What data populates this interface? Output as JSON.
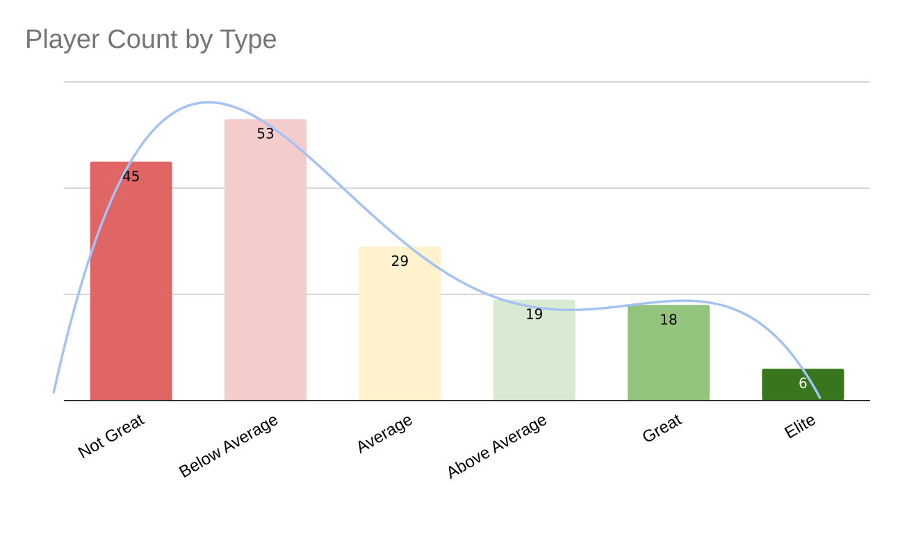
{
  "chart_data": {
    "type": "bar",
    "title": "Player Count by Type",
    "xlabel": "",
    "ylabel": "",
    "categories": [
      "Not Great",
      "Below Average",
      "Average",
      "Above Average",
      "Great",
      "Elite"
    ],
    "values": [
      45,
      53,
      29,
      19,
      18,
      6
    ],
    "colors": [
      "#e06666",
      "#f4cccc",
      "#fff2cc",
      "#d9ead3",
      "#93c47d",
      "#38761d"
    ],
    "label_colors": [
      "#000000",
      "#000000",
      "#000000",
      "#000000",
      "#000000",
      "#ffffff"
    ],
    "ylim": [
      0,
      60
    ],
    "y_gridlines": [
      20,
      40,
      60
    ],
    "y_tick_labels_visible": false,
    "grid": true,
    "legend": "none",
    "trendline": {
      "type": "polynomial",
      "color": "#a4c2f4"
    }
  }
}
